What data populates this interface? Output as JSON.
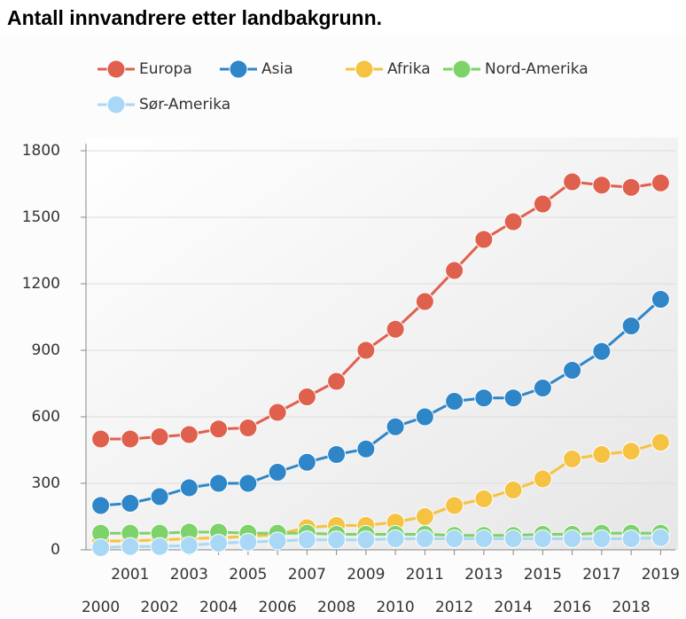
{
  "chart_data": {
    "type": "line",
    "title": "Antall innvandrere etter landbakgrunn.",
    "x": [
      2000,
      2001,
      2002,
      2003,
      2004,
      2005,
      2006,
      2007,
      2008,
      2009,
      2010,
      2011,
      2012,
      2013,
      2014,
      2015,
      2016,
      2017,
      2018,
      2019
    ],
    "series": [
      {
        "name": "Europa",
        "color": "#e0604e",
        "values": [
          500,
          500,
          510,
          520,
          545,
          550,
          620,
          690,
          760,
          900,
          995,
          1120,
          1260,
          1400,
          1480,
          1560,
          1660,
          1645,
          1635,
          1655
        ]
      },
      {
        "name": "Asia",
        "color": "#2e86c8",
        "values": [
          200,
          210,
          240,
          280,
          300,
          300,
          350,
          395,
          430,
          455,
          555,
          600,
          670,
          685,
          685,
          730,
          810,
          895,
          1010,
          1130
        ]
      },
      {
        "name": "Afrika",
        "color": "#f5c242",
        "values": [
          40,
          40,
          45,
          50,
          55,
          60,
          70,
          100,
          110,
          110,
          125,
          150,
          200,
          230,
          270,
          320,
          410,
          430,
          445,
          485
        ]
      },
      {
        "name": "Nord-Amerika",
        "color": "#7dd36a",
        "values": [
          75,
          75,
          75,
          80,
          80,
          75,
          75,
          75,
          70,
          70,
          70,
          70,
          65,
          65,
          65,
          70,
          70,
          75,
          75,
          75
        ]
      },
      {
        "name": "Sør-Amerika",
        "color": "#a8d8f5",
        "values": [
          10,
          15,
          15,
          20,
          30,
          35,
          40,
          45,
          45,
          45,
          50,
          50,
          50,
          50,
          50,
          50,
          50,
          50,
          50,
          55
        ]
      }
    ],
    "xlim": [
      1999.5,
      2019.5
    ],
    "xticks": [
      2000,
      2001,
      2002,
      2003,
      2004,
      2005,
      2006,
      2007,
      2008,
      2009,
      2010,
      2011,
      2012,
      2013,
      2014,
      2015,
      2016,
      2017,
      2018,
      2019
    ],
    "ylim": [
      0,
      1800
    ],
    "yticks": [
      0,
      300,
      600,
      900,
      1200,
      1500,
      1800
    ],
    "grid": true
  }
}
